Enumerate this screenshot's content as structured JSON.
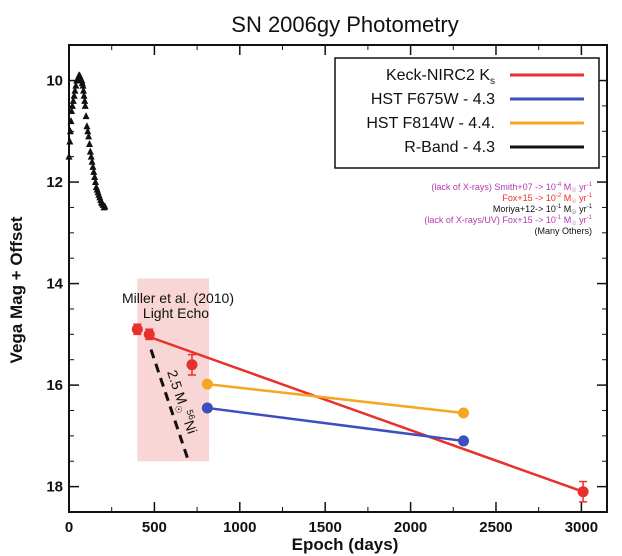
{
  "chart_data": {
    "type": "scatter",
    "title": "SN 2006gy Photometry",
    "xlabel": "Epoch (days)",
    "ylabel": "Vega Mag + Offset",
    "xlim": [
      0,
      3150
    ],
    "ylim": [
      9.3,
      18.5
    ],
    "y_inverted": true,
    "xticks": [
      0,
      500,
      1000,
      1500,
      2000,
      2500,
      3000
    ],
    "yticks": [
      10,
      12,
      14,
      16,
      18
    ],
    "legend_position": "top-right",
    "series": [
      {
        "name": "Keck-NIRC2 K",
        "name_subscript": "s",
        "color": "#e8302c",
        "marker": "circle",
        "errorbars": true,
        "x": [
          400,
          470,
          720,
          3010
        ],
        "y": [
          14.9,
          15.0,
          15.6,
          18.1
        ],
        "err": [
          0.1,
          0.1,
          0.2,
          0.2
        ],
        "fit_line": {
          "x": [
            470,
            3010
          ],
          "y": [
            15.05,
            18.1
          ]
        }
      },
      {
        "name": "HST F675W - 4.3",
        "color": "#3d4fc0",
        "marker": "circle",
        "errorbars": false,
        "x": [
          810,
          2310
        ],
        "y": [
          16.45,
          17.1
        ]
      },
      {
        "name": "HST F814W - 4.4.",
        "color": "#f5a623",
        "marker": "circle",
        "errorbars": false,
        "x": [
          810,
          2310
        ],
        "y": [
          15.98,
          16.55
        ]
      },
      {
        "name": "R-Band - 4.3",
        "color": "#111111",
        "marker": "triangle",
        "errorbars": false,
        "x": [
          0,
          5,
          8,
          12,
          15,
          20,
          25,
          30,
          35,
          40,
          45,
          50,
          55,
          58,
          62,
          65,
          68,
          72,
          75,
          78,
          82,
          85,
          88,
          92,
          95,
          100,
          105,
          110,
          115,
          120,
          125,
          130,
          135,
          140,
          145,
          150,
          155,
          160,
          165,
          170,
          175,
          180,
          185,
          190,
          195,
          200,
          205,
          210
        ],
        "y": [
          11.5,
          11.2,
          11.0,
          10.8,
          10.6,
          10.5,
          10.4,
          10.3,
          10.2,
          10.1,
          10.0,
          10.0,
          9.95,
          9.9,
          9.9,
          9.92,
          9.95,
          9.98,
          10.0,
          10.05,
          10.1,
          10.2,
          10.3,
          10.4,
          10.5,
          10.7,
          10.9,
          11.0,
          11.1,
          11.25,
          11.4,
          11.5,
          11.6,
          11.7,
          11.8,
          11.9,
          12.0,
          12.1,
          12.15,
          12.2,
          12.25,
          12.3,
          12.35,
          12.4,
          12.42,
          12.45,
          12.5,
          12.48
        ]
      }
    ],
    "shaded_region": {
      "x": [
        400,
        820
      ],
      "y": [
        13.9,
        17.5
      ],
      "color": "#f8d6d6"
    },
    "annotations": {
      "miller": "Miller et al. (2010)",
      "light_echo": "Light Echo",
      "ni_line": {
        "label": "2.5 M",
        "label_sub": "☉",
        "label_tail": "Ni",
        "label_tail_sup": "56",
        "x": [
          480,
          700
        ],
        "y": [
          15.3,
          17.5
        ]
      }
    },
    "notes": [
      {
        "text": "(lack of X-rays) Smith+07 -> 10",
        "sup": "-4",
        "unit": " M",
        "unit_sub": "☉",
        "rate": " yr",
        "rate_sup": "-1",
        "color": "#b23ab0"
      },
      {
        "text": "Fox+15 -> 10",
        "sup": "-2",
        "unit": " M",
        "unit_sub": "☉",
        "rate": " yr",
        "rate_sup": "-1",
        "color": "#e8302c"
      },
      {
        "text": "Moriya+12-> 10",
        "sup": "-1",
        "unit": " M",
        "unit_sub": "☉",
        "rate": " yr",
        "rate_sup": "-1",
        "color": "#111111"
      },
      {
        "text": "(lack of X-rays/UV) Fox+15 -> 10",
        "sup": "-1",
        "unit": " M",
        "unit_sub": "☉",
        "rate": " yr",
        "rate_sup": "-1",
        "color": "#b23ab0"
      },
      {
        "text": "(Many Others)",
        "color": "#111111"
      }
    ]
  }
}
